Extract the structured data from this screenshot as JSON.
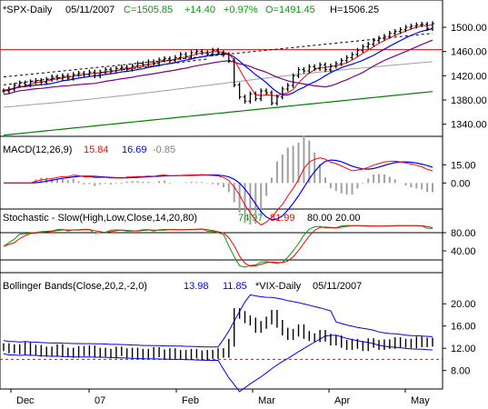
{
  "chart_data": [
    {
      "type": "line",
      "panel": "price",
      "header": {
        "symbol": "*SPX-Daily",
        "date": "05/11/2007",
        "close_text": "C=1505.85",
        "change_text": "+14.40",
        "pct_text": "+0.97%",
        "open_text": "O=1491.45",
        "high_text": "H=1506.25"
      },
      "ylim": [
        1320,
        1515
      ],
      "yticks": [
        "1500.00",
        "1460.00",
        "1420.00",
        "1380.00",
        "1340.00"
      ],
      "ytick_values": [
        1500,
        1460,
        1420,
        1380,
        1340
      ],
      "horizontal_line": 1463,
      "series": [
        {
          "values": [
            1395,
            1398,
            1404,
            1408,
            1405,
            1410,
            1412,
            1409,
            1414,
            1418,
            1416,
            1420,
            1416,
            1422,
            1424,
            1422,
            1426,
            1420,
            1426,
            1430,
            1428,
            1432,
            1434,
            1431,
            1436,
            1440,
            1438,
            1443,
            1440,
            1446,
            1448,
            1445,
            1450,
            1455,
            1452,
            1458,
            1460,
            1458,
            1456,
            1462,
            1458,
            1455,
            1445,
            1405,
            1385,
            1378,
            1390,
            1382,
            1395,
            1392,
            1375,
            1385,
            1398,
            1404,
            1420,
            1430,
            1428,
            1435,
            1432,
            1438,
            1430,
            1436,
            1440,
            1445,
            1450,
            1455,
            1462,
            1468,
            1472,
            1478,
            1482,
            1485,
            1490,
            1493,
            1496,
            1500,
            1502,
            1504,
            1505,
            1498,
            1506
          ]
        }
      ],
      "overlays": [
        "20-day MA",
        "50-day MA",
        "100-day MA",
        "200-day MA",
        "resistance trendline"
      ]
    },
    {
      "type": "line",
      "panel": "macd",
      "header": {
        "name": "MACD(12,26,9)",
        "v1": "15.84",
        "v2": "16.69",
        "v3": "-0.85"
      },
      "ylim": [
        -20,
        25
      ],
      "yticks": [
        "15.00",
        "0.00"
      ],
      "ytick_values": [
        15,
        0
      ]
    },
    {
      "type": "line",
      "panel": "stochastic",
      "header": {
        "name": "Stochastic - Slow(High,Low,Close,14,20,80)",
        "v1": "74.97",
        "v2": "81.99",
        "v3": "80.00",
        "v4": "20.00"
      },
      "ylim": [
        0,
        100
      ],
      "yticks": [
        "80.00",
        "40.00"
      ],
      "ytick_values": [
        80,
        40
      ]
    },
    {
      "type": "line",
      "panel": "vix",
      "header": {
        "name": "Bollinger Bands(Close,20,2,-2,0)",
        "v1": "13.98",
        "v2": "11.85",
        "v3": "*VIX-Daily",
        "v4": "05/11/2007"
      },
      "ylim": [
        5,
        22
      ],
      "yticks": [
        "20.00",
        "16.00",
        "12.00",
        "8.00"
      ],
      "ytick_values": [
        20,
        16,
        12,
        8
      ],
      "horizontal_line": 10,
      "values": [
        12.2,
        11.8,
        12.0,
        11.6,
        12.4,
        11.5,
        11.9,
        11.2,
        11.6,
        11.3,
        12.0,
        11.1,
        11.4,
        11.0,
        11.7,
        11.3,
        11.8,
        11.0,
        11.4,
        11.2,
        10.9,
        11.6,
        11.3,
        11.0,
        11.4,
        10.8,
        11.2,
        10.9,
        11.5,
        11.1,
        10.7,
        11.3,
        10.8,
        11.0,
        10.6,
        11.2,
        10.9,
        10.5,
        11.0,
        10.8,
        11.3,
        11.0,
        13.0,
        18.5,
        18.0,
        17.2,
        16.8,
        15.5,
        16.2,
        17.0,
        18.2,
        16.4,
        15.0,
        14.2,
        14.8,
        15.6,
        14.4,
        14.0,
        13.8,
        14.6,
        13.9,
        13.2,
        13.6,
        12.8,
        12.4,
        13.0,
        12.6,
        12.2,
        13.1,
        12.8,
        12.4,
        12.9,
        12.6,
        13.3,
        12.8,
        13.0,
        12.7,
        13.4,
        12.9,
        13.2,
        13.0
      ]
    }
  ],
  "x_axis": {
    "labels": [
      "Dec",
      "07",
      "Feb",
      "Mar",
      "Apr",
      "May"
    ]
  },
  "colors": {
    "price_up": "#00a000",
    "price_down": "#ff0000",
    "bars": "#000000",
    "ma_blue": "#0000ff",
    "ma_red": "#ff0000",
    "ma_purple": "#800080",
    "ma_gray": "#a0a0a0",
    "ma_green": "#008000",
    "hist": "#a0a0a0"
  }
}
